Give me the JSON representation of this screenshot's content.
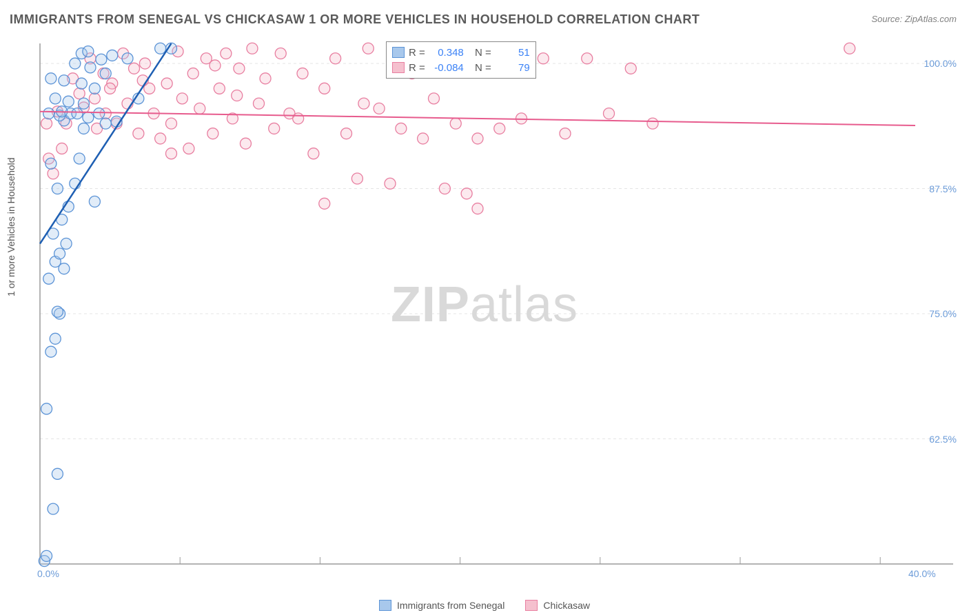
{
  "title": "IMMIGRANTS FROM SENEGAL VS CHICKASAW 1 OR MORE VEHICLES IN HOUSEHOLD CORRELATION CHART",
  "source_prefix": "Source: ",
  "source_name": "ZipAtlas.com",
  "ylabel": "1 or more Vehicles in Household",
  "watermark_bold": "ZIP",
  "watermark_light": "atlas",
  "chart": {
    "type": "scatter",
    "background_color": "#ffffff",
    "grid_color": "#e5e5e5",
    "grid_dash": "4,4",
    "axis_color": "#9a9a9a",
    "title_color": "#5a5a5a",
    "title_fontsize": 18,
    "label_fontsize": 14,
    "tick_color": "#6b9bd8",
    "tick_fontsize": 14,
    "xlim": [
      0,
      40
    ],
    "ylim": [
      50,
      102
    ],
    "xticks": [
      0,
      40
    ],
    "xtick_labels": [
      "0.0%",
      "40.0%"
    ],
    "yticks": [
      62.5,
      75,
      87.5,
      100
    ],
    "ytick_labels": [
      "62.5%",
      "75.0%",
      "87.5%",
      "100.0%"
    ],
    "marker_radius": 8,
    "marker_fill_opacity": 0.35,
    "series": [
      {
        "name": "Immigrants from Senegal",
        "color_fill": "#a8c8ec",
        "color_stroke": "#5b93d6",
        "trend_color": "#1e5fb3",
        "trend_width": 2.5,
        "r": "0.348",
        "n": "51",
        "trend": {
          "x1": 0,
          "y1": 82,
          "x2": 6,
          "y2": 102
        },
        "points": [
          [
            0.2,
            50.3
          ],
          [
            0.3,
            50.8
          ],
          [
            0.6,
            55.5
          ],
          [
            0.8,
            59.0
          ],
          [
            0.3,
            65.5
          ],
          [
            0.5,
            71.2
          ],
          [
            0.7,
            72.5
          ],
          [
            0.9,
            75.0
          ],
          [
            0.8,
            75.2
          ],
          [
            0.4,
            78.5
          ],
          [
            1.1,
            79.5
          ],
          [
            0.7,
            80.2
          ],
          [
            0.9,
            81.0
          ],
          [
            1.2,
            82.0
          ],
          [
            0.6,
            83.0
          ],
          [
            1.0,
            84.4
          ],
          [
            1.3,
            85.7
          ],
          [
            2.5,
            86.2
          ],
          [
            0.8,
            87.5
          ],
          [
            1.6,
            88.0
          ],
          [
            0.5,
            90.0
          ],
          [
            1.8,
            90.5
          ],
          [
            2.0,
            93.5
          ],
          [
            3.0,
            94.0
          ],
          [
            1.1,
            94.3
          ],
          [
            2.2,
            94.6
          ],
          [
            0.9,
            94.8
          ],
          [
            1.4,
            95.0
          ],
          [
            2.7,
            95.0
          ],
          [
            0.4,
            95.0
          ],
          [
            1.7,
            95.0
          ],
          [
            1.0,
            95.2
          ],
          [
            3.5,
            94.2
          ],
          [
            2.0,
            96.0
          ],
          [
            1.3,
            96.2
          ],
          [
            0.7,
            96.5
          ],
          [
            2.5,
            97.5
          ],
          [
            1.9,
            98.0
          ],
          [
            1.1,
            98.3
          ],
          [
            0.5,
            98.5
          ],
          [
            3.0,
            99.0
          ],
          [
            2.3,
            99.6
          ],
          [
            1.6,
            100.0
          ],
          [
            2.8,
            100.4
          ],
          [
            4.0,
            100.5
          ],
          [
            3.3,
            100.8
          ],
          [
            1.9,
            101.0
          ],
          [
            2.2,
            101.2
          ],
          [
            5.5,
            101.5
          ],
          [
            4.5,
            96.5
          ],
          [
            6.0,
            101.5
          ]
        ]
      },
      {
        "name": "Chickasaw",
        "color_fill": "#f5c0ce",
        "color_stroke": "#e87ea0",
        "trend_color": "#e75b8d",
        "trend_width": 2,
        "r": "-0.084",
        "n": "79",
        "trend": {
          "x1": 0,
          "y1": 95.2,
          "x2": 40,
          "y2": 93.8
        },
        "points": [
          [
            0.4,
            90.5
          ],
          [
            0.8,
            95.2
          ],
          [
            1.2,
            94.0
          ],
          [
            1.5,
            98.5
          ],
          [
            1.8,
            97.0
          ],
          [
            2.0,
            95.6
          ],
          [
            2.3,
            100.5
          ],
          [
            2.6,
            93.5
          ],
          [
            2.9,
            99.0
          ],
          [
            3.0,
            95.0
          ],
          [
            3.3,
            98.0
          ],
          [
            3.5,
            94.0
          ],
          [
            3.8,
            101.0
          ],
          [
            4.0,
            96.0
          ],
          [
            4.3,
            99.5
          ],
          [
            4.5,
            93.0
          ],
          [
            4.8,
            100.0
          ],
          [
            5.0,
            97.5
          ],
          [
            5.2,
            95.0
          ],
          [
            5.5,
            92.5
          ],
          [
            5.8,
            98.0
          ],
          [
            6.0,
            94.0
          ],
          [
            6.3,
            101.2
          ],
          [
            6.5,
            96.5
          ],
          [
            6.8,
            91.5
          ],
          [
            7.0,
            99.0
          ],
          [
            7.3,
            95.5
          ],
          [
            7.6,
            100.5
          ],
          [
            7.9,
            93.0
          ],
          [
            8.2,
            97.5
          ],
          [
            8.5,
            101.0
          ],
          [
            8.8,
            94.5
          ],
          [
            9.1,
            99.5
          ],
          [
            9.4,
            92.0
          ],
          [
            9.7,
            101.5
          ],
          [
            10.0,
            96.0
          ],
          [
            10.3,
            98.5
          ],
          [
            10.7,
            93.5
          ],
          [
            11.0,
            101.0
          ],
          [
            11.4,
            95.0
          ],
          [
            12.0,
            99.0
          ],
          [
            12.5,
            91.0
          ],
          [
            13.0,
            97.5
          ],
          [
            13.0,
            86.0
          ],
          [
            13.5,
            100.5
          ],
          [
            14.0,
            93.0
          ],
          [
            14.5,
            88.5
          ],
          [
            15.0,
            101.5
          ],
          [
            15.5,
            95.5
          ],
          [
            16.0,
            88.0
          ],
          [
            16.5,
            93.5
          ],
          [
            17.0,
            99.0
          ],
          [
            17.5,
            92.5
          ],
          [
            18.0,
            96.5
          ],
          [
            18.5,
            87.5
          ],
          [
            19.0,
            94.0
          ],
          [
            19.5,
            87.0
          ],
          [
            20.0,
            92.5
          ],
          [
            20.0,
            85.5
          ],
          [
            21.0,
            93.5
          ],
          [
            22.0,
            94.5
          ],
          [
            23.0,
            100.5
          ],
          [
            24.0,
            93.0
          ],
          [
            25.0,
            100.5
          ],
          [
            26.0,
            95.0
          ],
          [
            27.0,
            99.5
          ],
          [
            28.0,
            94.0
          ],
          [
            37.0,
            101.5
          ],
          [
            0.6,
            89.0
          ],
          [
            1.0,
            91.5
          ],
          [
            2.5,
            96.5
          ],
          [
            3.2,
            97.5
          ],
          [
            4.7,
            98.3
          ],
          [
            6.0,
            91.0
          ],
          [
            8.0,
            99.8
          ],
          [
            9.0,
            96.8
          ],
          [
            11.8,
            94.5
          ],
          [
            14.8,
            96.0
          ],
          [
            0.3,
            94.0
          ]
        ]
      }
    ]
  },
  "legend_top": {
    "r_label": "R =",
    "n_label": "N ="
  },
  "legend_bottom": {
    "series1_label": "Immigrants from Senegal",
    "series2_label": "Chickasaw"
  }
}
